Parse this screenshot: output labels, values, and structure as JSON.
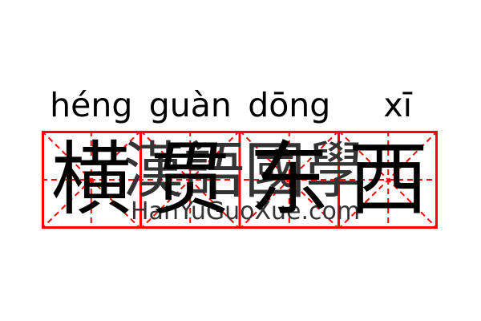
{
  "card": {
    "pinyin": [
      "héng",
      "guàn",
      "dōng",
      "xī"
    ],
    "characters": [
      "横",
      "贯",
      "东",
      "西"
    ],
    "watermark_cjk": [
      "漢",
      "語",
      "國",
      "學"
    ],
    "watermark_url": "HanYuGuoXue.com"
  },
  "grid": {
    "cells": 4
  },
  "colors": {
    "grid_red": "#ff0000",
    "ink": "#000000",
    "watermark_gray": "#333333",
    "background": "#ffffff"
  }
}
